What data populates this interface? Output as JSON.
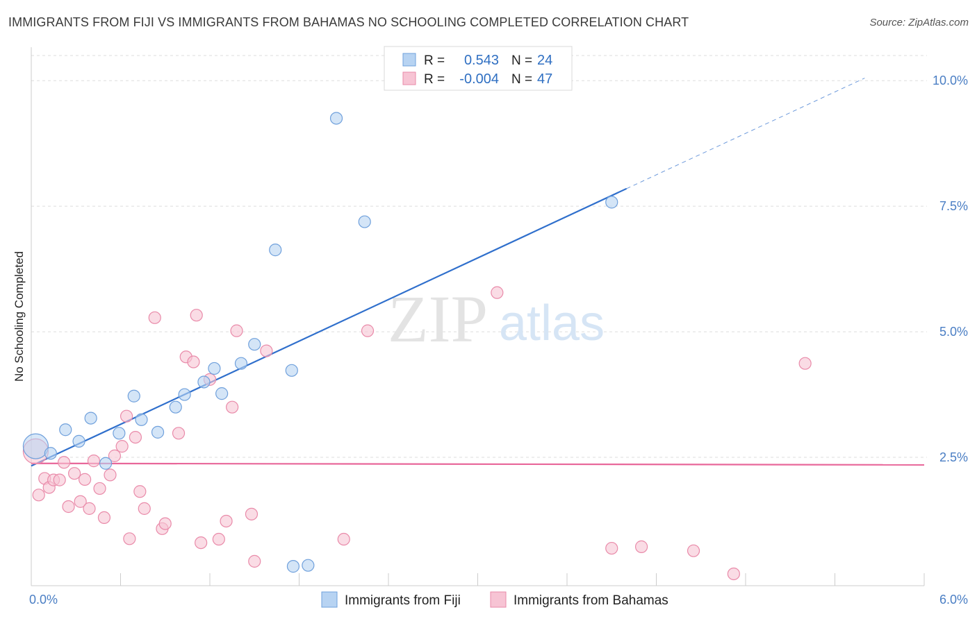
{
  "title": "IMMIGRANTS FROM FIJI VS IMMIGRANTS FROM BAHAMAS NO SCHOOLING COMPLETED CORRELATION CHART",
  "source": "Source: ZipAtlas.com",
  "watermark": {
    "zip": "ZIP",
    "atlas": "atlas"
  },
  "colors": {
    "fiji_fill": "#b7d3f2",
    "fiji_stroke": "#6fa0dc",
    "fiji_line": "#2f6fcc",
    "bahamas_fill": "#f7c4d4",
    "bahamas_stroke": "#e98aa9",
    "bahamas_line": "#e8679a",
    "tick_label": "#4a7ec4",
    "grid": "#dedede"
  },
  "legend": {
    "rows": [
      {
        "r_label": "R =",
        "r_value": "0.543",
        "n_label": "N =",
        "n_value": "24"
      },
      {
        "r_label": "R =",
        "r_value": "-0.004",
        "n_label": "N =",
        "n_value": "47"
      }
    ]
  },
  "chart_data": {
    "type": "scatter",
    "title": "IMMIGRANTS FROM FIJI VS IMMIGRANTS FROM BAHAMAS NO SCHOOLING COMPLETED CORRELATION CHART",
    "xlabel": "",
    "ylabel": "No Schooling Completed",
    "xlim": [
      0,
      6.0
    ],
    "ylim": [
      0,
      10.5
    ],
    "x_tick_labels": [
      "0.0%",
      "6.0%"
    ],
    "x_tick_values": [
      0,
      6.0
    ],
    "y_tick_labels": [
      "2.5%",
      "5.0%",
      "7.5%",
      "10.0%"
    ],
    "y_tick_values": [
      2.5,
      5.0,
      7.5,
      10.0
    ],
    "grid": true,
    "legend_position": "top-center",
    "series": [
      {
        "name": "Immigrants from Fiji",
        "r": 0.543,
        "n": 24,
        "trend": {
          "x0": 0.0,
          "y0": 2.33,
          "x1": 4.0,
          "y1": 7.85,
          "dashed_to_x": 5.6,
          "dashed_to_y": 10.05
        },
        "points": [
          {
            "x": 0.03,
            "y": 2.72,
            "big": true
          },
          {
            "x": 0.13,
            "y": 2.58
          },
          {
            "x": 0.23,
            "y": 3.05
          },
          {
            "x": 0.32,
            "y": 2.82
          },
          {
            "x": 0.4,
            "y": 3.28
          },
          {
            "x": 0.5,
            "y": 2.38
          },
          {
            "x": 0.59,
            "y": 2.98
          },
          {
            "x": 0.69,
            "y": 3.72
          },
          {
            "x": 0.74,
            "y": 3.25
          },
          {
            "x": 0.85,
            "y": 3.0
          },
          {
            "x": 0.97,
            "y": 3.5
          },
          {
            "x": 1.03,
            "y": 3.75
          },
          {
            "x": 1.16,
            "y": 4.0
          },
          {
            "x": 1.23,
            "y": 4.27
          },
          {
            "x": 1.28,
            "y": 3.77
          },
          {
            "x": 1.41,
            "y": 4.37
          },
          {
            "x": 1.5,
            "y": 4.75
          },
          {
            "x": 1.64,
            "y": 6.63
          },
          {
            "x": 1.75,
            "y": 4.23
          },
          {
            "x": 1.76,
            "y": 0.33
          },
          {
            "x": 1.86,
            "y": 0.35
          },
          {
            "x": 2.05,
            "y": 9.25
          },
          {
            "x": 2.24,
            "y": 7.19
          },
          {
            "x": 3.9,
            "y": 7.58
          }
        ]
      },
      {
        "name": "Immigrants from Bahamas",
        "r": -0.004,
        "n": 47,
        "trend": {
          "x0": 0.0,
          "y0": 2.38,
          "x1": 6.0,
          "y1": 2.35
        },
        "points": [
          {
            "x": 0.03,
            "y": 2.62,
            "big": true
          },
          {
            "x": 0.05,
            "y": 1.75
          },
          {
            "x": 0.09,
            "y": 2.08
          },
          {
            "x": 0.12,
            "y": 1.9
          },
          {
            "x": 0.15,
            "y": 2.05
          },
          {
            "x": 0.19,
            "y": 2.05
          },
          {
            "x": 0.22,
            "y": 2.4
          },
          {
            "x": 0.25,
            "y": 1.52
          },
          {
            "x": 0.29,
            "y": 2.18
          },
          {
            "x": 0.33,
            "y": 1.62
          },
          {
            "x": 0.36,
            "y": 2.06
          },
          {
            "x": 0.39,
            "y": 1.48
          },
          {
            "x": 0.42,
            "y": 2.43
          },
          {
            "x": 0.46,
            "y": 1.88
          },
          {
            "x": 0.49,
            "y": 1.3
          },
          {
            "x": 0.53,
            "y": 2.15
          },
          {
            "x": 0.56,
            "y": 2.53
          },
          {
            "x": 0.61,
            "y": 2.72
          },
          {
            "x": 0.64,
            "y": 3.32
          },
          {
            "x": 0.66,
            "y": 0.88
          },
          {
            "x": 0.7,
            "y": 2.9
          },
          {
            "x": 0.73,
            "y": 1.82
          },
          {
            "x": 0.76,
            "y": 1.48
          },
          {
            "x": 0.83,
            "y": 5.28
          },
          {
            "x": 0.88,
            "y": 1.08
          },
          {
            "x": 0.9,
            "y": 1.18
          },
          {
            "x": 0.99,
            "y": 2.98
          },
          {
            "x": 1.04,
            "y": 4.5
          },
          {
            "x": 1.09,
            "y": 4.4
          },
          {
            "x": 1.11,
            "y": 5.33
          },
          {
            "x": 1.14,
            "y": 0.8
          },
          {
            "x": 1.2,
            "y": 4.05
          },
          {
            "x": 1.26,
            "y": 0.87
          },
          {
            "x": 1.31,
            "y": 1.23
          },
          {
            "x": 1.35,
            "y": 3.5
          },
          {
            "x": 1.38,
            "y": 5.02
          },
          {
            "x": 1.48,
            "y": 1.37
          },
          {
            "x": 1.5,
            "y": 0.43
          },
          {
            "x": 1.58,
            "y": 4.62
          },
          {
            "x": 2.1,
            "y": 0.87
          },
          {
            "x": 2.26,
            "y": 5.02
          },
          {
            "x": 3.13,
            "y": 5.78
          },
          {
            "x": 3.9,
            "y": 0.69
          },
          {
            "x": 4.1,
            "y": 0.72
          },
          {
            "x": 4.45,
            "y": 0.64
          },
          {
            "x": 4.72,
            "y": 0.18
          },
          {
            "x": 5.2,
            "y": 4.37
          }
        ]
      }
    ]
  }
}
